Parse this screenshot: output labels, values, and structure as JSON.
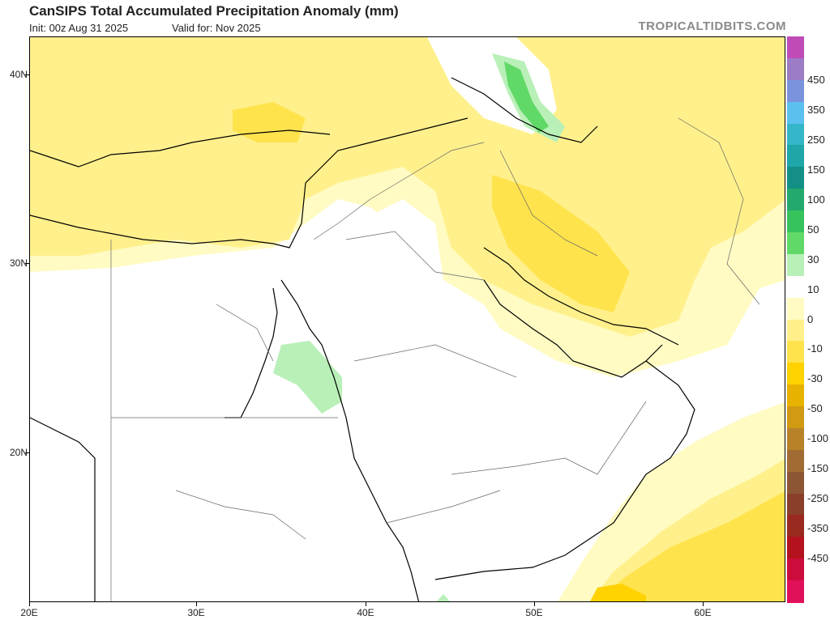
{
  "header": {
    "title": "CanSIPS Total Accumulated Precipitation Anomaly (mm)",
    "init": "Init: 00z Aug 31 2025",
    "valid": "Valid for: Nov 2025",
    "credit": "TROPICALTIDBITS.COM"
  },
  "map": {
    "lat_labels": [
      "40N",
      "30N",
      "20N"
    ],
    "lon_labels": [
      "20E",
      "30E",
      "40E",
      "50E",
      "60E"
    ]
  },
  "legend": {
    "labels": [
      "450",
      "350",
      "250",
      "150",
      "100",
      "50",
      "30",
      "10",
      "0",
      "-10",
      "-30",
      "-50",
      "-100",
      "-150",
      "-250",
      "-350",
      "-450"
    ],
    "colors": [
      "#c04bb8",
      "#9d7cc6",
      "#7b93dd",
      "#5cc0ef",
      "#35b6c9",
      "#1ea6a8",
      "#138f86",
      "#23a96d",
      "#37c35b",
      "#61d968",
      "#b9f0b8",
      "#ffffff",
      "#fffbc2",
      "#fff08b",
      "#ffe34d",
      "#ffd200",
      "#e8b200",
      "#d09a12",
      "#b88328",
      "#a16c34",
      "#8c5634",
      "#8a3f2a",
      "#9a2a1f",
      "#b3121e",
      "#cc0c3c",
      "#e0105a"
    ]
  }
}
